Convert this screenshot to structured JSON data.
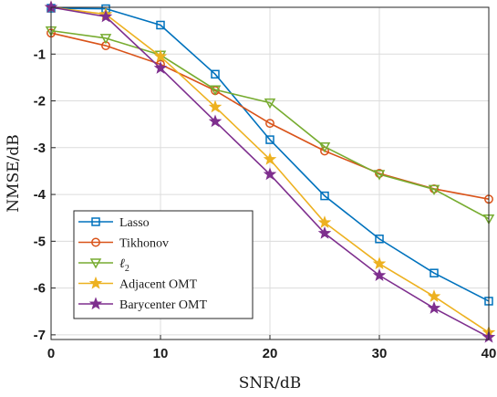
{
  "chart_data": {
    "type": "line",
    "xlabel": "SNR/dB",
    "ylabel": "NMSE/dB",
    "xlim": [
      0,
      40
    ],
    "ylim": [
      -7.1,
      0
    ],
    "xticks": [
      0,
      10,
      20,
      30,
      40
    ],
    "yticks": [
      -1,
      -2,
      -3,
      -4,
      -5,
      -6,
      -7
    ],
    "grid": true,
    "legend_position": "bottom-left",
    "x": [
      0,
      5,
      10,
      15,
      20,
      25,
      30,
      35,
      40
    ],
    "series": [
      {
        "name": "Lasso",
        "color": "#0072BD",
        "marker": "square",
        "values": [
          -0.02,
          -0.03,
          -0.38,
          -1.43,
          -2.83,
          -4.03,
          -4.95,
          -5.68,
          -6.28
        ]
      },
      {
        "name": "Tikhonov",
        "color": "#D95319",
        "marker": "circle",
        "values": [
          -0.55,
          -0.82,
          -1.22,
          -1.78,
          -2.48,
          -3.07,
          -3.55,
          -3.88,
          -4.1
        ]
      },
      {
        "name": "ℓ2",
        "name_main": "ℓ",
        "name_sub": "2",
        "color": "#77AC30",
        "marker": "triangle-down",
        "values": [
          -0.5,
          -0.66,
          -1.02,
          -1.76,
          -2.04,
          -2.98,
          -3.57,
          -3.89,
          -4.52
        ]
      },
      {
        "name": "Adjacent OMT",
        "color": "#EDB120",
        "marker": "star",
        "values": [
          0.0,
          -0.15,
          -1.05,
          -2.13,
          -3.25,
          -4.6,
          -5.48,
          -6.18,
          -6.95
        ]
      },
      {
        "name": "Barycenter OMT",
        "color": "#7E2F8E",
        "marker": "star",
        "values": [
          0.0,
          -0.2,
          -1.3,
          -2.44,
          -3.57,
          -4.83,
          -5.73,
          -6.43,
          -7.05
        ]
      }
    ]
  }
}
